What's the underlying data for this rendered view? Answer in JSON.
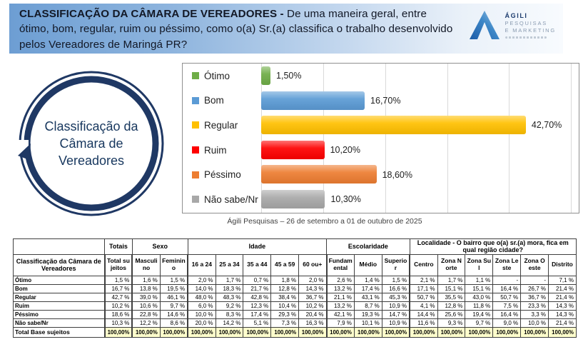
{
  "header": {
    "title_bold": "CLASSIFICAÇÃO DA CÂMARA DE VEREADORES -",
    "title_rest": "De uma maneira geral, entre ótimo, bom, regular, ruim ou péssimo, como o(a) Sr.(a) classifica o trabalho desenvolvido pelos Vereadores de Maringá PR?",
    "logo": {
      "name": "ÁGILI",
      "line2": "PESQUISAS",
      "line3": "E MARKETING"
    }
  },
  "circle": {
    "label": "Classificação da Câmara de Vereadores",
    "color": "#1F3864"
  },
  "chart_data": {
    "type": "bar",
    "orientation": "horizontal",
    "categories": [
      "Ótimo",
      "Bom",
      "Regular",
      "Ruim",
      "Péssimo",
      "Não sabe/Nr"
    ],
    "values": [
      1.5,
      16.7,
      42.7,
      10.2,
      18.6,
      10.3
    ],
    "value_labels": [
      "1,50%",
      "16,70%",
      "42,70%",
      "10,20%",
      "18,60%",
      "10,30%"
    ],
    "colors": [
      "#6FAD47",
      "#5B9BD5",
      "#FFC000",
      "#FE0000",
      "#ED7D31",
      "#A8A8A8"
    ],
    "xlim": [
      0,
      51
    ],
    "grid_interval": 10,
    "grid": true,
    "legend_position": "left",
    "caption": "Ágili Pesquisas – 26 de setembro a 01 de outubro de 2025"
  },
  "table": {
    "row_header": "Classificação da Câmara de Vereadores",
    "groups": [
      {
        "label": "",
        "span": 1
      },
      {
        "label": "Totais",
        "span": 1
      },
      {
        "label": "Sexo",
        "span": 2
      },
      {
        "label": "Idade",
        "span": 5
      },
      {
        "label": "Escolaridade",
        "span": 3
      },
      {
        "label": "Localidade - O bairro que o(a) sr.(a) mora, fica em qual região cidade?",
        "span": 6
      }
    ],
    "columns": [
      "Total sujeitos",
      "Masculino",
      "Feminino",
      "16 a 24",
      "25 a 34",
      "35 a 44",
      "45 a 59",
      "60 ou+",
      "Fundamental",
      "Médio",
      "Superior",
      "Centro",
      "Zona Norte",
      "Zona Sul",
      "Zona Leste",
      "Zona Oeste",
      "Distrito"
    ],
    "rows": [
      {
        "label": "Ótimo",
        "values": [
          "1,5 %",
          "1,6 %",
          "1,5 %",
          "2,0 %",
          "1,7 %",
          "0,7 %",
          "1,8 %",
          "2,0 %",
          "2,6 %",
          "1,4 %",
          "1,5 %",
          "2,1 %",
          "1,7 %",
          "1,1 %",
          "-",
          "-",
          "7,1 %"
        ]
      },
      {
        "label": "Bom",
        "values": [
          "16,7 %",
          "13,8 %",
          "19,5 %",
          "14,0 %",
          "18,3 %",
          "21,7 %",
          "12,8 %",
          "14,3 %",
          "13,2 %",
          "17,4 %",
          "16,6 %",
          "17,1 %",
          "15,1 %",
          "15,1 %",
          "16,4 %",
          "26,7 %",
          "21,4 %"
        ]
      },
      {
        "label": "Regular",
        "values": [
          "42,7 %",
          "39,0 %",
          "46,1 %",
          "48,0 %",
          "48,3 %",
          "42,8 %",
          "38,4 %",
          "36,7 %",
          "21,1 %",
          "43,1 %",
          "45,3 %",
          "50,7 %",
          "35,5 %",
          "43,0 %",
          "50,7 %",
          "36,7 %",
          "21,4 %"
        ]
      },
      {
        "label": "Ruim",
        "values": [
          "10,2 %",
          "10,6 %",
          "9,7 %",
          "6,0 %",
          "9,2 %",
          "12,3 %",
          "10,4 %",
          "10,2 %",
          "13,2 %",
          "8,7 %",
          "10,9 %",
          "4,1 %",
          "12,8 %",
          "11,8 %",
          "7,5 %",
          "23,3 %",
          "14,3 %"
        ]
      },
      {
        "label": "Péssimo",
        "values": [
          "18,6 %",
          "22,8 %",
          "14,6 %",
          "10,0 %",
          "8,3 %",
          "17,4 %",
          "29,3 %",
          "20,4 %",
          "42,1 %",
          "19,3 %",
          "14,7 %",
          "14,4 %",
          "25,6 %",
          "19,4 %",
          "16,4 %",
          "3,3 %",
          "14,3 %"
        ]
      },
      {
        "label": "Não sabe/Nr",
        "values": [
          "10,3 %",
          "12,2 %",
          "8,6 %",
          "20,0 %",
          "14,2 %",
          "5,1 %",
          "7,3 %",
          "16,3 %",
          "7,9 %",
          "10,1 %",
          "10,9 %",
          "11,6 %",
          "9,3 %",
          "9,7 %",
          "9,0 %",
          "10,0 %",
          "21,4 %"
        ]
      }
    ],
    "total_row": {
      "label": "Total Base sujeitos",
      "values": [
        "100,00%",
        "100,00%",
        "100,00%",
        "100,00%",
        "100,00%",
        "100,00%",
        "100,00%",
        "100,00%",
        "100,00%",
        "100,00%",
        "100,00%",
        "100,00%",
        "100,00%",
        "100,00%",
        "100,00%",
        "100,00%",
        "100,00%"
      ]
    }
  }
}
